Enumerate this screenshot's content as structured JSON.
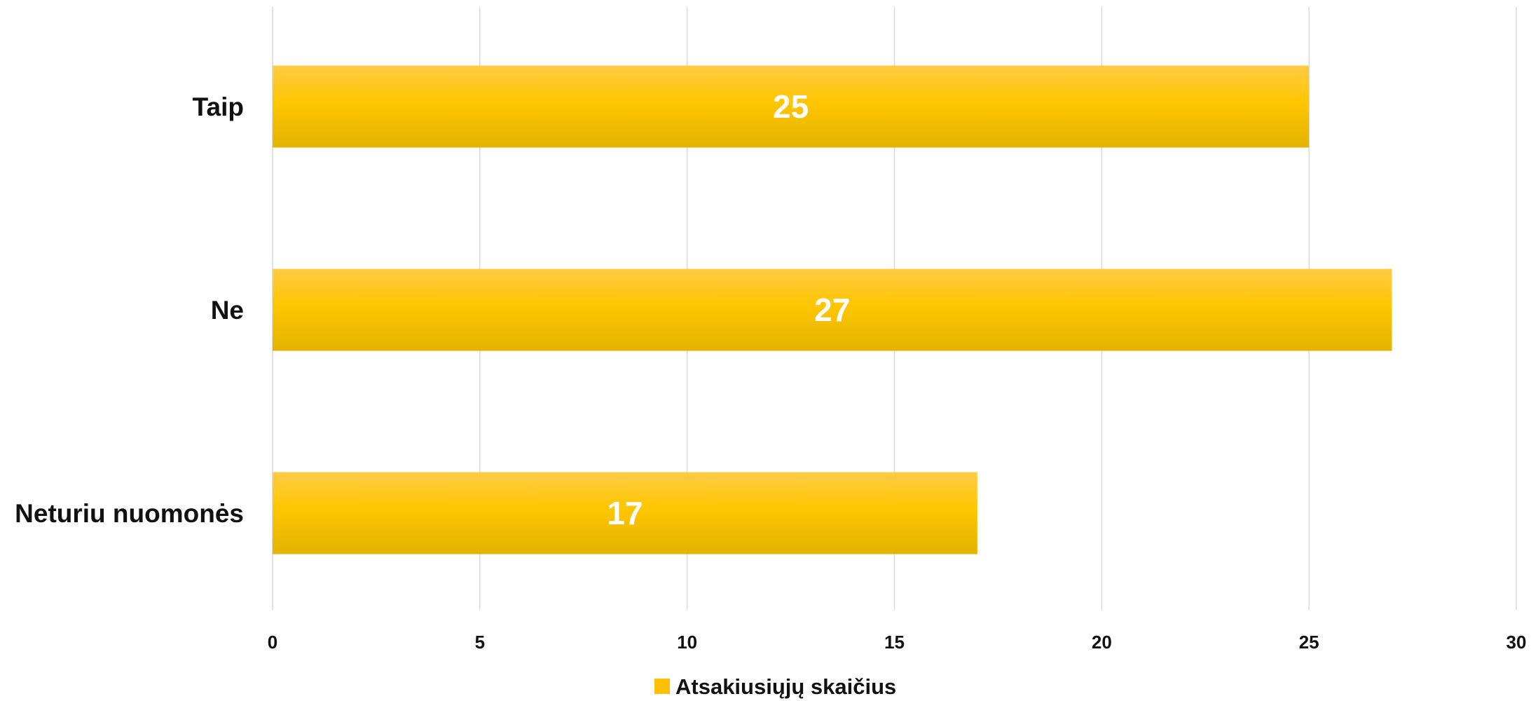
{
  "chart_data": {
    "type": "bar",
    "orientation": "horizontal",
    "categories": [
      "Taip",
      "Ne",
      "Neturiu nuomonės"
    ],
    "series": [
      {
        "name": "Atsakiusiųjų skaičius",
        "values": [
          25,
          27,
          17
        ],
        "color": "#FFC000"
      }
    ],
    "data_labels": [
      "25",
      "27",
      "17"
    ],
    "xlim": [
      0,
      30
    ],
    "x_ticks": [
      0,
      5,
      10,
      15,
      20,
      25,
      30
    ],
    "x_tick_labels": [
      "0",
      "5",
      "10",
      "15",
      "20",
      "25",
      "30"
    ],
    "xlabel": "",
    "ylabel": "",
    "title": "",
    "grid": "vertical",
    "legend_position": "bottom"
  },
  "colors": {
    "bar_top": "#FFCB45",
    "bar_mid": "#FFC600",
    "bar_bottom": "#E3B300",
    "grid": "#d9d9d9",
    "text": "#111111",
    "data_label": "#ffffff"
  }
}
